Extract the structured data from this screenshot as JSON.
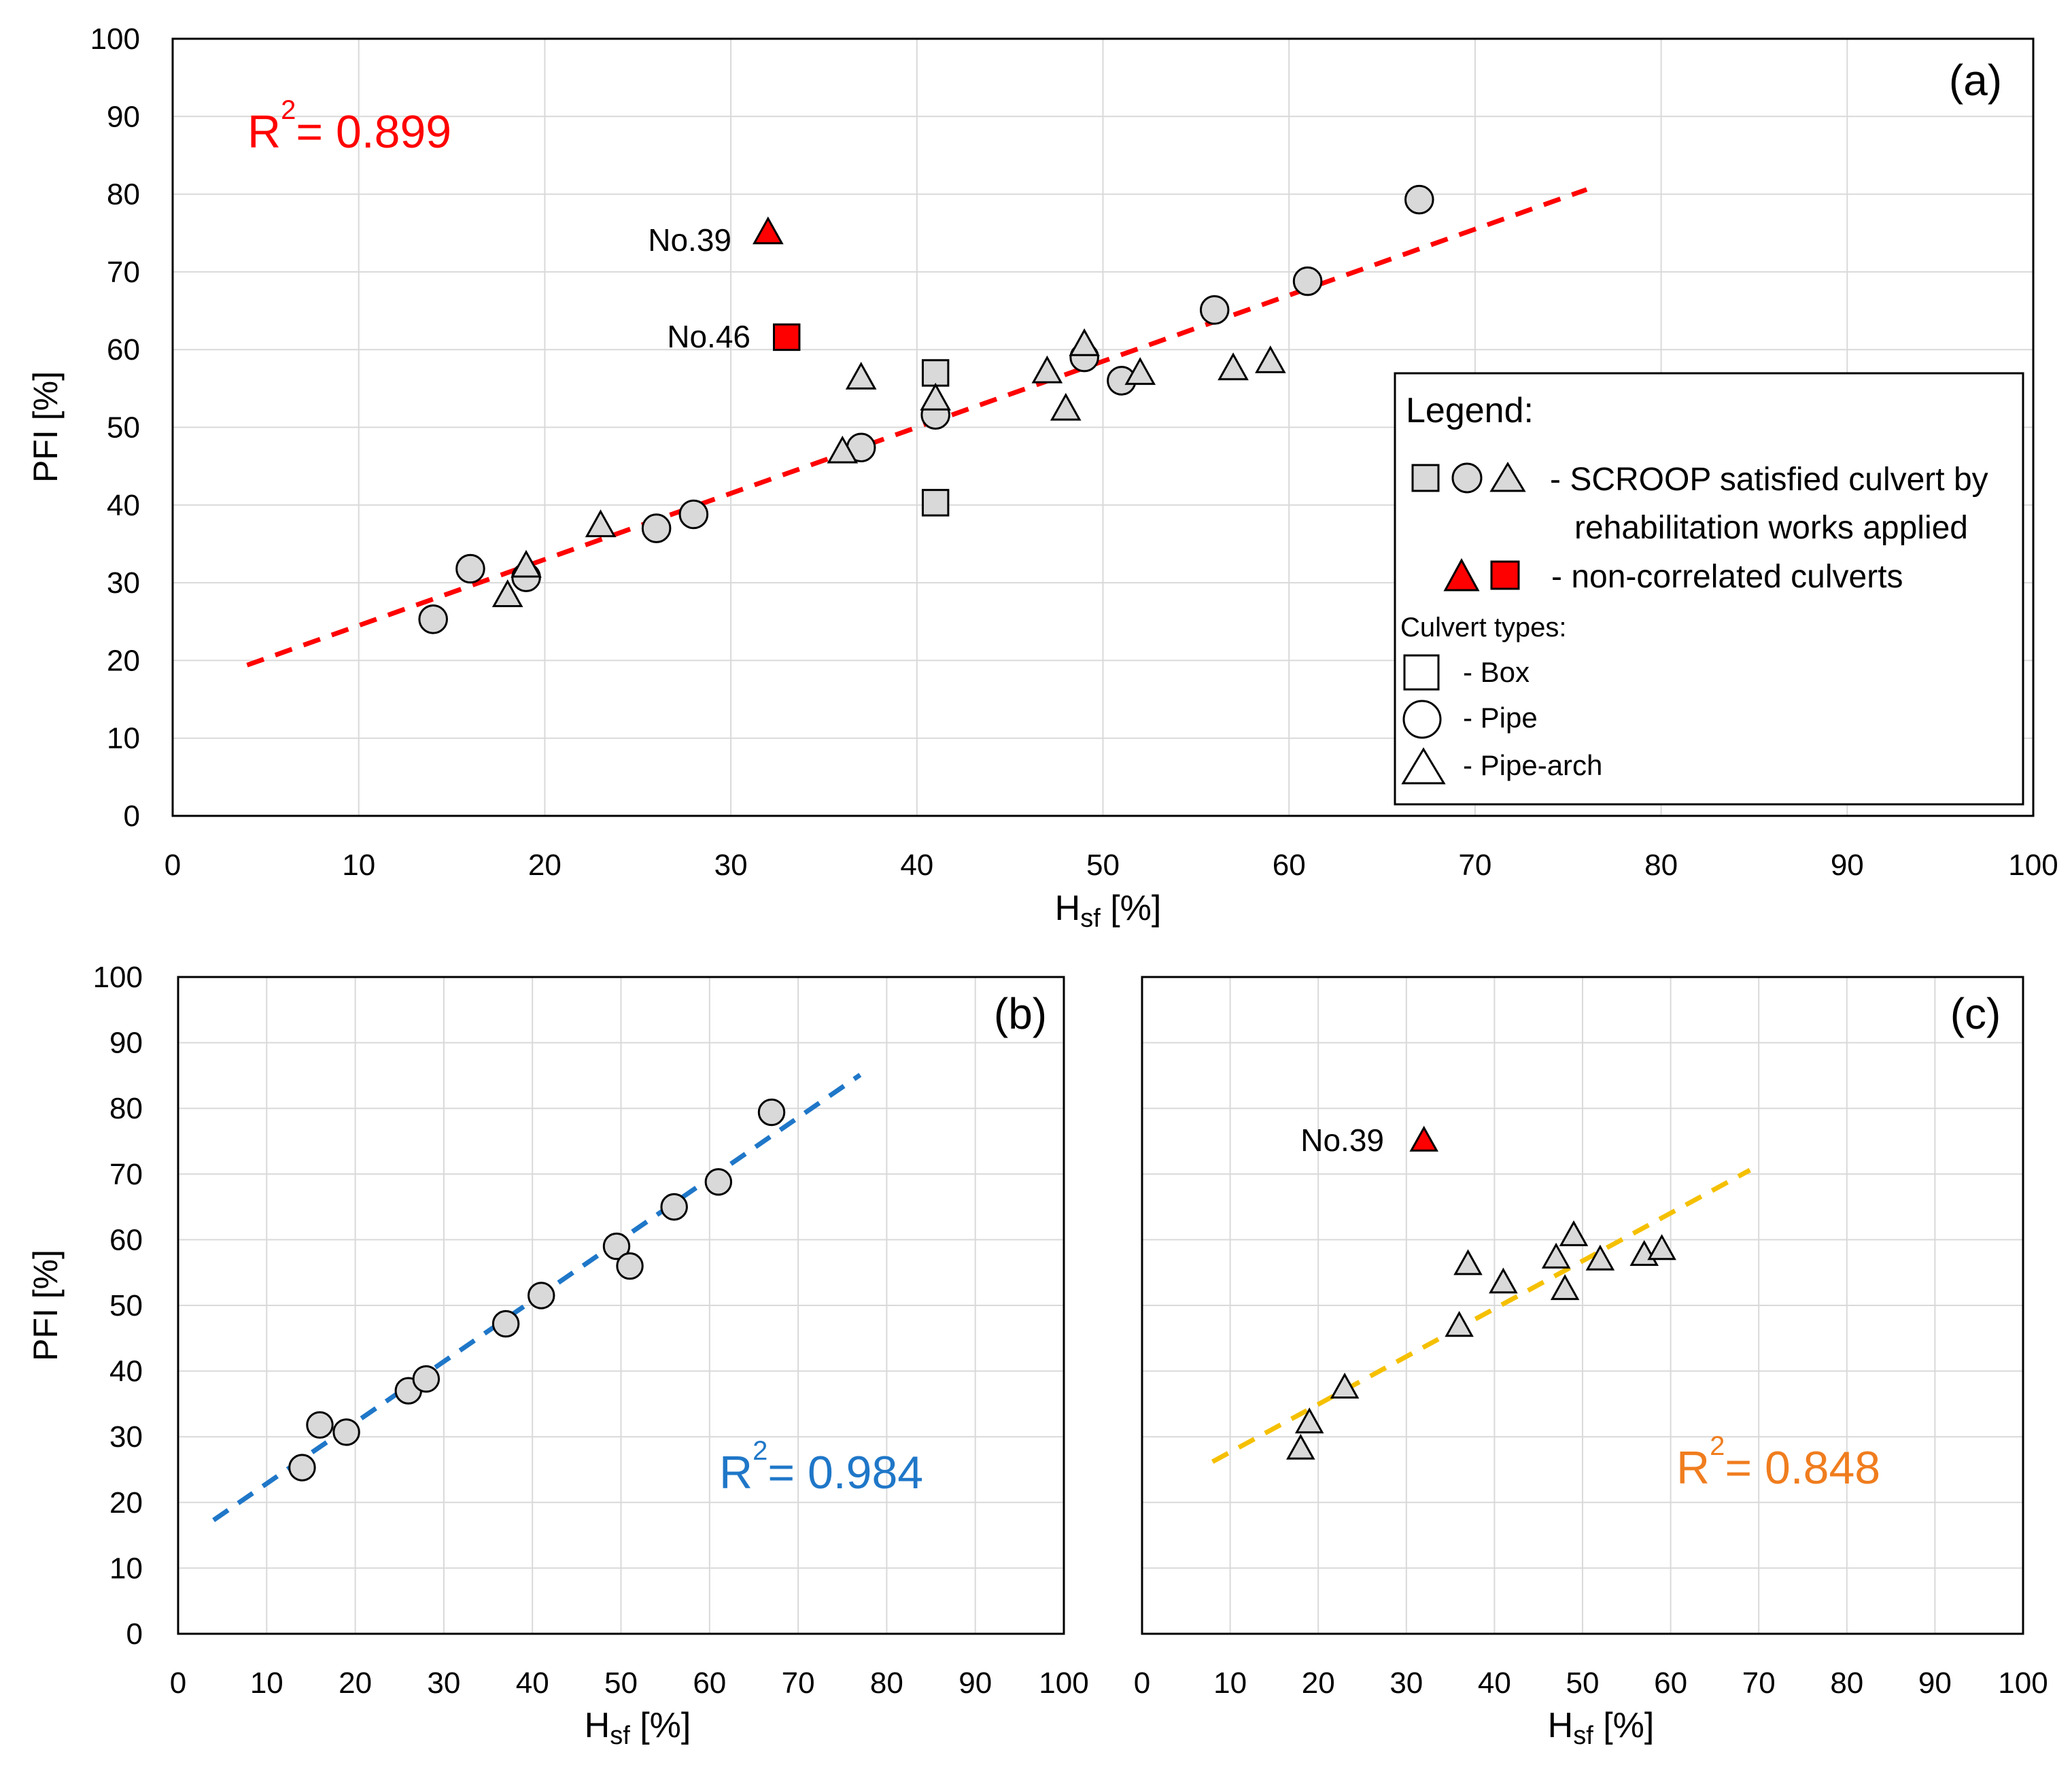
{
  "chart_data": [
    {
      "id": "a",
      "type": "scatter",
      "panel_label": "(a)",
      "xlabel_main": "H",
      "xlabel_sub": "sf",
      "xlabel_unit": " [%]",
      "ylabel": "PFI [%]",
      "xlim": [
        0,
        100
      ],
      "ylim": [
        0,
        100
      ],
      "xticks": [
        "0",
        "10",
        "20",
        "30",
        "40",
        "50",
        "60",
        "70",
        "80",
        "90",
        "100"
      ],
      "yticks": [
        "0",
        "10",
        "20",
        "30",
        "40",
        "50",
        "60",
        "70",
        "80",
        "90",
        "100"
      ],
      "grid": true,
      "r2": {
        "base": "R",
        "sup": "2",
        "value": "= 0.899",
        "color": "#ff0000"
      },
      "trendline": {
        "x": [
          4,
          76
        ],
        "y": [
          19.4,
          80.6
        ],
        "color": "#ff0000",
        "style": "dashed"
      },
      "series": [
        {
          "name": "Box",
          "marker": "square",
          "fill": "#d9d9d9",
          "points": [
            [
              41,
              57
            ],
            [
              41,
              40.3
            ]
          ]
        },
        {
          "name": "Pipe",
          "marker": "circle",
          "fill": "#d9d9d9",
          "points": [
            [
              14,
              25.3
            ],
            [
              16,
              31.8
            ],
            [
              19,
              30.7
            ],
            [
              26,
              37
            ],
            [
              28,
              38.8
            ],
            [
              37,
              47.4
            ],
            [
              41,
              51.6
            ],
            [
              49,
              59
            ],
            [
              51,
              56
            ],
            [
              56,
              65.1
            ],
            [
              61,
              68.8
            ],
            [
              67,
              79.3
            ]
          ]
        },
        {
          "name": "Pipe-arch",
          "marker": "triangle",
          "fill": "#d9d9d9",
          "points": [
            [
              18,
              28.3
            ],
            [
              19,
              32.1
            ],
            [
              23,
              37.3
            ],
            [
              36,
              46.8
            ],
            [
              37,
              56.3
            ],
            [
              41,
              53.6
            ],
            [
              47,
              57.1
            ],
            [
              48,
              52.3
            ],
            [
              49,
              60.6
            ],
            [
              52,
              56.9
            ],
            [
              57,
              57.5
            ],
            [
              59,
              58.4
            ]
          ]
        },
        {
          "name": "non-correlated",
          "marker": "triangle",
          "fill": "#ff0000",
          "points": [
            [
              32,
              75
            ]
          ],
          "label": "No.39"
        },
        {
          "name": "non-correlated",
          "marker": "square",
          "fill": "#ff0000",
          "points": [
            [
              33,
              61.6
            ]
          ],
          "label": "No.46"
        }
      ],
      "legend": {
        "title": "Legend:",
        "line1": "- SCROOP satisfied culvert by",
        "line2": "rehabilitation works applied",
        "line3": "- non-correlated culverts",
        "types_title": "Culvert types:",
        "box": "- Box",
        "pipe": "- Pipe",
        "pipearch": "- Pipe-arch"
      }
    },
    {
      "id": "b",
      "type": "scatter",
      "panel_label": "(b)",
      "xlabel_main": "H",
      "xlabel_sub": "sf",
      "xlabel_unit": " [%]",
      "ylabel": "PFI [%]",
      "xlim": [
        0,
        100
      ],
      "ylim": [
        0,
        100
      ],
      "xticks": [
        "0",
        "10",
        "20",
        "30",
        "40",
        "50",
        "60",
        "70",
        "80",
        "90",
        "100"
      ],
      "yticks": [
        "0",
        "10",
        "20",
        "30",
        "40",
        "50",
        "60",
        "70",
        "80",
        "90",
        "100"
      ],
      "grid": true,
      "r2": {
        "base": "R",
        "sup": "2",
        "value": "= 0.984",
        "color": "#1f77c8"
      },
      "trendline": {
        "x": [
          4,
          77
        ],
        "y": [
          17.3,
          85.1
        ],
        "color": "#1f77c8",
        "style": "dashed"
      },
      "series": [
        {
          "name": "Pipe",
          "marker": "circle",
          "fill": "#d9d9d9",
          "points": [
            [
              14,
              25.3
            ],
            [
              16,
              31.8
            ],
            [
              19,
              30.7
            ],
            [
              26,
              37
            ],
            [
              28,
              38.8
            ],
            [
              37,
              47.2
            ],
            [
              41,
              51.5
            ],
            [
              49.5,
              59
            ],
            [
              51,
              56
            ],
            [
              56,
              65
            ],
            [
              61,
              68.8
            ],
            [
              67,
              79.4
            ]
          ]
        }
      ]
    },
    {
      "id": "c",
      "type": "scatter",
      "panel_label": "(c)",
      "xlabel_main": "H",
      "xlabel_sub": "sf",
      "xlabel_unit": " [%]",
      "ylabel": "",
      "xlim": [
        0,
        100
      ],
      "ylim": [
        0,
        100
      ],
      "xticks": [
        "0",
        "10",
        "20",
        "30",
        "40",
        "50",
        "60",
        "70",
        "80",
        "90",
        "100"
      ],
      "yticks": [],
      "grid": true,
      "r2": {
        "base": "R",
        "sup": "2",
        "value": "= 0.848",
        "color": "#f07d1e"
      },
      "trendline": {
        "x": [
          8,
          69
        ],
        "y": [
          26.2,
          70.6
        ],
        "color": "#f5c000",
        "style": "dashed"
      },
      "series": [
        {
          "name": "Pipe-arch",
          "marker": "triangle",
          "fill": "#d9d9d9",
          "points": [
            [
              18,
              28.1
            ],
            [
              19,
              32.1
            ],
            [
              23,
              37.4
            ],
            [
              36,
              46.8
            ],
            [
              37,
              56.2
            ],
            [
              41,
              53.4
            ],
            [
              47,
              57.2
            ],
            [
              48,
              52.4
            ],
            [
              49,
              60.6
            ],
            [
              52,
              56.9
            ],
            [
              57,
              57.6
            ],
            [
              59,
              58.5
            ]
          ]
        },
        {
          "name": "non-correlated",
          "marker": "triangle",
          "fill": "#ff0000",
          "points": [
            [
              32,
              75
            ]
          ],
          "label": "No.39"
        }
      ]
    }
  ]
}
